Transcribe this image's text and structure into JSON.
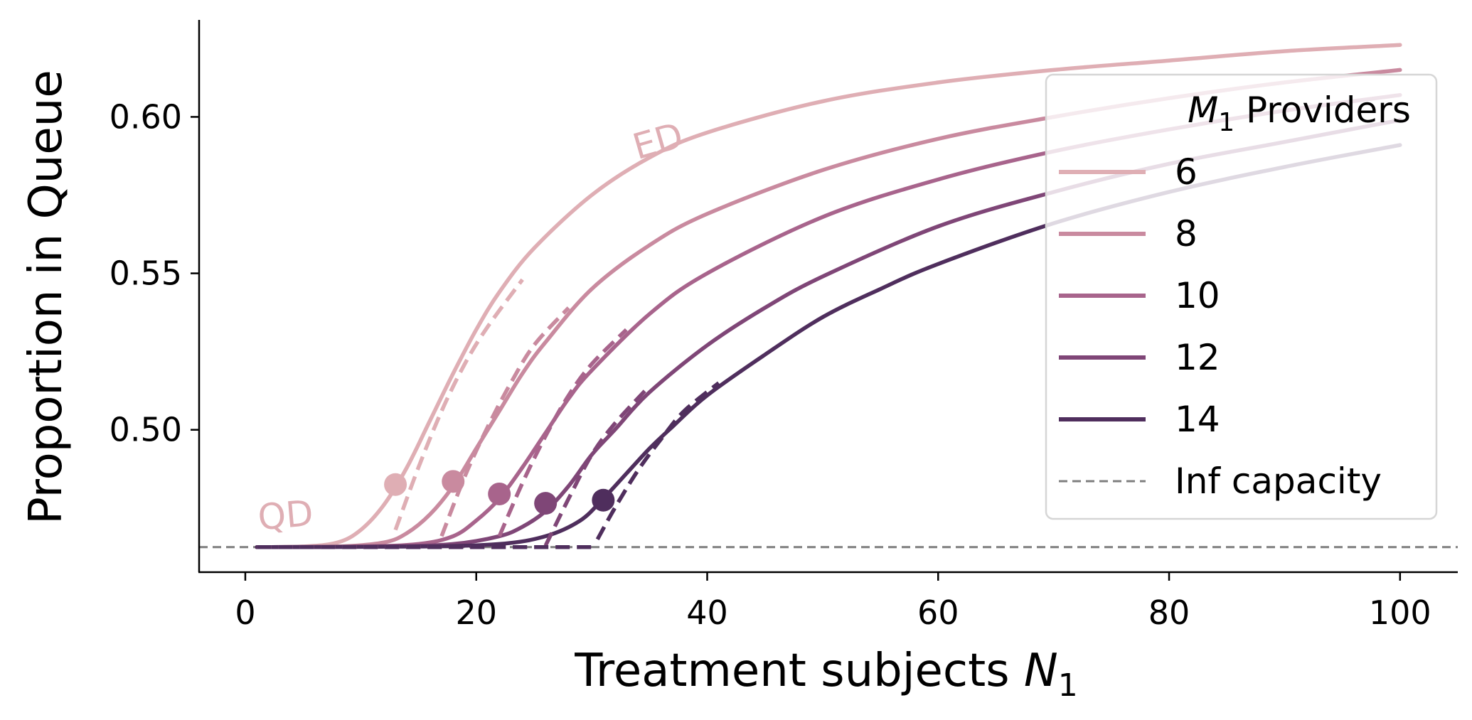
{
  "chart_data": {
    "type": "line",
    "xlabel": "Treatment subjects N1",
    "ylabel": "Proportion in Queue",
    "xlim": [
      -4,
      105
    ],
    "ylim": [
      0.4545,
      0.631
    ],
    "xticks": [
      0,
      20,
      40,
      60,
      80,
      100
    ],
    "xtick_labels": [
      "0",
      "20",
      "40",
      "60",
      "80",
      "100"
    ],
    "yticks": [
      0.5,
      0.55,
      0.6
    ],
    "ytick_labels": [
      "0.50",
      "0.55",
      "0.60"
    ],
    "grid": false,
    "legend": {
      "title": "M1 Providers",
      "placement": "right",
      "entries": [
        "6",
        "8",
        "10",
        "12",
        "14",
        "Inf capacity"
      ]
    },
    "annotations": [
      {
        "text": "ED",
        "x": 36,
        "y": 0.594
      },
      {
        "text": "QD",
        "x": 3.5,
        "y": 0.468
      }
    ],
    "reference_line": {
      "name": "Inf capacity",
      "y": 0.4625,
      "style": "dashed",
      "color": "#7f7f7f"
    },
    "series": [
      {
        "name": "6",
        "color": "#dfaeb4",
        "x": [
          1,
          5,
          8,
          10,
          12,
          14,
          16,
          18,
          20,
          22,
          25,
          30,
          35,
          40,
          50,
          60,
          70,
          80,
          90,
          100
        ],
        "y": [
          0.4625,
          0.4627,
          0.464,
          0.468,
          0.476,
          0.488,
          0.503,
          0.518,
          0.532,
          0.544,
          0.558,
          0.575,
          0.587,
          0.595,
          0.605,
          0.611,
          0.615,
          0.618,
          0.621,
          0.623
        ],
        "dashed_x": [
          13,
          15,
          17,
          19,
          21,
          24
        ],
        "dashed_y": [
          0.468,
          0.488,
          0.506,
          0.521,
          0.533,
          0.548
        ],
        "marker": {
          "x": 13,
          "y": 0.4825
        }
      },
      {
        "name": "8",
        "color": "#c98a9f",
        "x": [
          1,
          8,
          12,
          14,
          16,
          18,
          20,
          22,
          24,
          26,
          30,
          35,
          40,
          50,
          60,
          70,
          80,
          90,
          100
        ],
        "y": [
          0.4625,
          0.4627,
          0.464,
          0.467,
          0.473,
          0.482,
          0.494,
          0.506,
          0.518,
          0.528,
          0.545,
          0.559,
          0.569,
          0.583,
          0.593,
          0.6,
          0.606,
          0.611,
          0.615
        ],
        "dashed_x": [
          17,
          19,
          21,
          23,
          25,
          28
        ],
        "dashed_y": [
          0.466,
          0.485,
          0.501,
          0.515,
          0.527,
          0.539
        ],
        "marker": {
          "x": 18,
          "y": 0.4835
        }
      },
      {
        "name": "10",
        "color": "#a8648c",
        "x": [
          1,
          10,
          15,
          18,
          20,
          22,
          24,
          26,
          28,
          30,
          35,
          40,
          50,
          60,
          70,
          80,
          90,
          100
        ],
        "y": [
          0.4625,
          0.4627,
          0.4635,
          0.466,
          0.471,
          0.478,
          0.488,
          0.499,
          0.51,
          0.519,
          0.537,
          0.55,
          0.568,
          0.58,
          0.589,
          0.596,
          0.602,
          0.607
        ],
        "dashed_x": [
          22,
          24,
          26,
          28,
          30,
          33
        ],
        "dashed_y": [
          0.466,
          0.483,
          0.498,
          0.511,
          0.521,
          0.532
        ],
        "marker": {
          "x": 22,
          "y": 0.4795
        }
      },
      {
        "name": "12",
        "color": "#7f4677",
        "x": [
          1,
          12,
          18,
          22,
          24,
          26,
          28,
          30,
          32,
          35,
          40,
          45,
          50,
          60,
          70,
          80,
          90,
          100
        ],
        "y": [
          0.4625,
          0.4627,
          0.4635,
          0.466,
          0.469,
          0.474,
          0.482,
          0.492,
          0.5,
          0.512,
          0.527,
          0.539,
          0.549,
          0.565,
          0.576,
          0.585,
          0.592,
          0.599
        ],
        "dashed_x": [
          26,
          28,
          30,
          32,
          35
        ],
        "dashed_y": [
          0.463,
          0.478,
          0.492,
          0.502,
          0.514
        ],
        "marker": {
          "x": 26,
          "y": 0.4765
        }
      },
      {
        "name": "14",
        "color": "#4f2e5d",
        "x": [
          1,
          15,
          22,
          26,
          29,
          31,
          33,
          35,
          37,
          40,
          45,
          50,
          55,
          60,
          70,
          80,
          90,
          100
        ],
        "y": [
          0.4625,
          0.4627,
          0.4635,
          0.466,
          0.471,
          0.478,
          0.486,
          0.494,
          0.501,
          0.511,
          0.524,
          0.536,
          0.545,
          0.553,
          0.566,
          0.576,
          0.584,
          0.591
        ],
        "dashed_x": [
          30.5,
          32,
          34,
          36,
          38,
          41
        ],
        "dashed_y": [
          0.465,
          0.475,
          0.487,
          0.497,
          0.506,
          0.515
        ],
        "marker": {
          "x": 31,
          "y": 0.4775
        }
      }
    ]
  }
}
